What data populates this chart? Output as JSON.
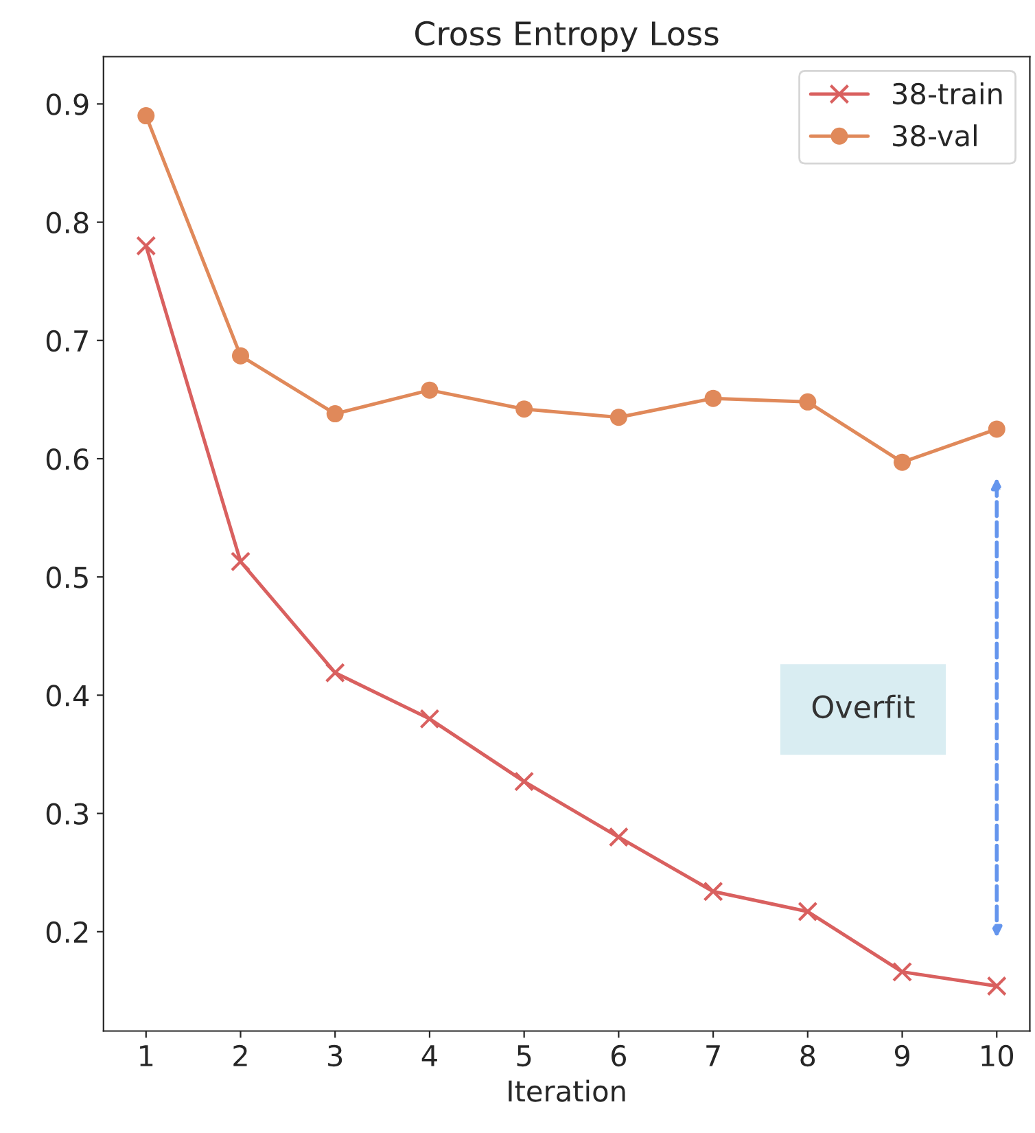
{
  "chart_data": {
    "type": "line",
    "title": "Cross Entropy Loss",
    "xlabel": "Iteration",
    "x": [
      1,
      2,
      3,
      4,
      5,
      6,
      7,
      8,
      9,
      10
    ],
    "series": [
      {
        "name": "38-train",
        "color": "#d9605f",
        "marker": "cross",
        "values": [
          0.78,
          0.513,
          0.419,
          0.38,
          0.327,
          0.28,
          0.234,
          0.217,
          0.166,
          0.154
        ]
      },
      {
        "name": "38-val",
        "color": "#e0895a",
        "marker": "circle",
        "values": [
          0.89,
          0.687,
          0.638,
          0.658,
          0.642,
          0.635,
          0.651,
          0.648,
          0.597,
          0.625
        ]
      }
    ],
    "xlim": [
      0.55,
      10.35
    ],
    "ylim": [
      0.116,
      0.94
    ],
    "xticks": [
      1,
      2,
      3,
      4,
      5,
      6,
      7,
      8,
      9,
      10
    ],
    "yticks": [
      0.2,
      0.3,
      0.4,
      0.5,
      0.6,
      0.7,
      0.8,
      0.9
    ],
    "annotations": [
      "Overfit"
    ],
    "legend": "top right",
    "grid": false
  }
}
